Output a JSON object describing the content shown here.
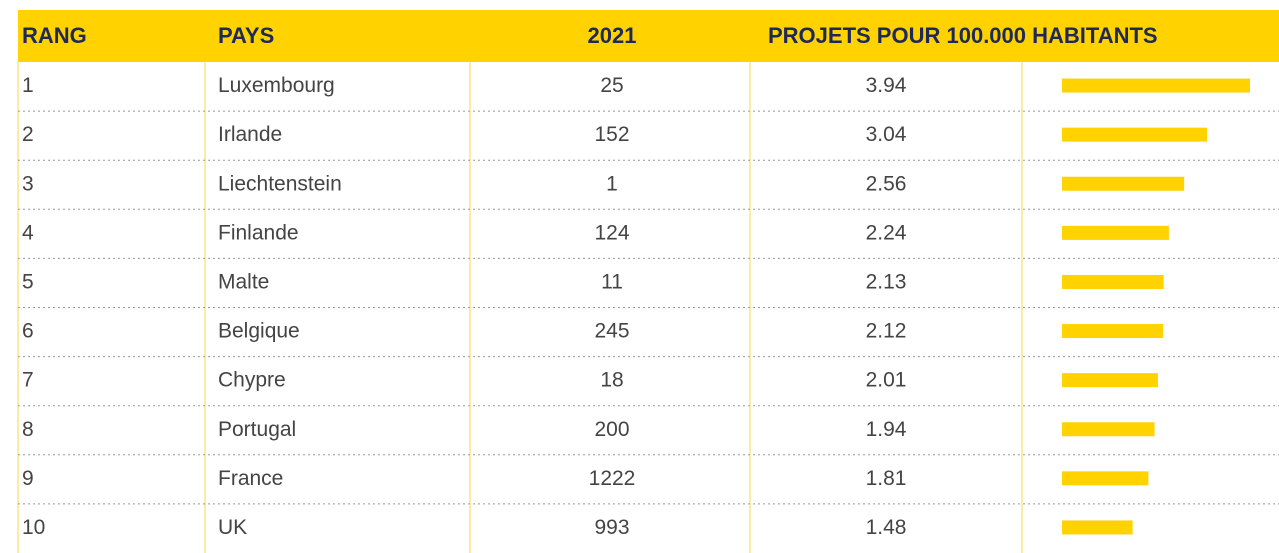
{
  "table": {
    "header": [
      "RANG",
      "PAYS",
      "2021",
      "PROJETS POUR 100.000 HABITANTS"
    ],
    "rows": [
      [
        1,
        "Luxembourg",
        25,
        3.94
      ],
      [
        2,
        "Irlande",
        152,
        3.04
      ],
      [
        3,
        "Liechtenstein",
        1,
        2.56
      ],
      [
        4,
        "Finlande",
        124,
        2.24
      ],
      [
        5,
        "Malte",
        11,
        2.13
      ],
      [
        6,
        "Belgique",
        245,
        2.12
      ],
      [
        7,
        "Chypre",
        18,
        2.01
      ],
      [
        8,
        "Portugal",
        200,
        1.94
      ],
      [
        9,
        "France",
        1222,
        1.81
      ],
      [
        10,
        "UK",
        993,
        1.48
      ]
    ],
    "bar_color": "#ffd200"
  }
}
